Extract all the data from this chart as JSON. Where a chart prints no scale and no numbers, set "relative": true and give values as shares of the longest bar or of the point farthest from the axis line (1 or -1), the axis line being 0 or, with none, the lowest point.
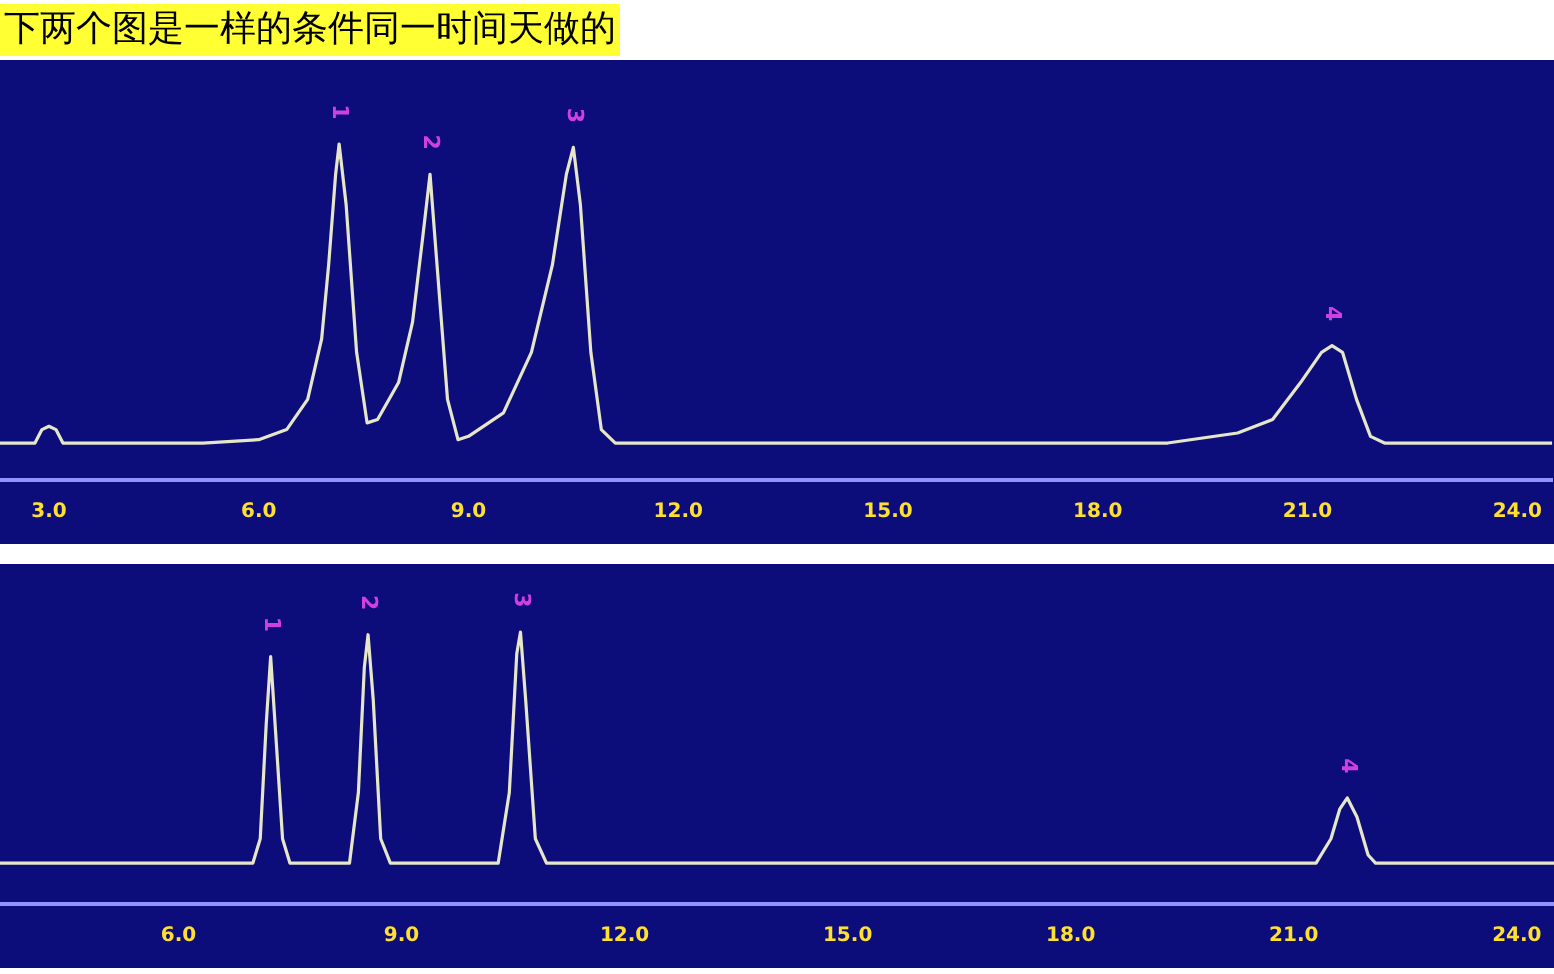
{
  "chart_data": [
    {
      "type": "line",
      "title": "下两个图是一样的条件同一时间天做的",
      "relative": true,
      "color": "#e6e6c8",
      "marker": "none",
      "x": [
        2.3,
        2.8,
        2.9,
        3.0,
        3.1,
        3.2,
        5.2,
        6.0,
        6.4,
        6.7,
        6.9,
        7.0,
        7.1,
        7.15,
        7.25,
        7.4,
        7.55,
        7.7,
        8.0,
        8.2,
        8.35,
        8.45,
        8.55,
        8.7,
        8.85,
        9.0,
        9.5,
        9.9,
        10.2,
        10.4,
        10.5,
        10.6,
        10.75,
        10.9,
        11.1,
        18.2,
        18.6,
        19.0,
        20.0,
        20.5,
        20.9,
        21.2,
        21.35,
        21.5,
        21.7,
        21.9,
        22.1,
        24.5
      ],
      "values": [
        0.11,
        0.11,
        0.15,
        0.16,
        0.15,
        0.11,
        0.11,
        0.12,
        0.15,
        0.24,
        0.42,
        0.64,
        0.91,
        1.0,
        0.82,
        0.38,
        0.17,
        0.18,
        0.29,
        0.47,
        0.73,
        0.91,
        0.64,
        0.24,
        0.12,
        0.13,
        0.2,
        0.38,
        0.64,
        0.91,
        0.99,
        0.82,
        0.38,
        0.15,
        0.11,
        0.11,
        0.11,
        0.11,
        0.14,
        0.18,
        0.29,
        0.38,
        0.4,
        0.38,
        0.24,
        0.13,
        0.11,
        0.11
      ],
      "xlim": [
        2.3,
        24.5
      ],
      "xticks": [
        {
          "value": 3,
          "label": "3.0"
        },
        {
          "value": 6,
          "label": "6.0"
        },
        {
          "value": 9,
          "label": "9.0"
        },
        {
          "value": 12,
          "label": "12.0"
        },
        {
          "value": 15,
          "label": "15.0"
        },
        {
          "value": 18,
          "label": "18.0"
        },
        {
          "value": 21,
          "label": "21.0"
        },
        {
          "value": 24,
          "label": "24.0"
        }
      ],
      "annotations": [
        {
          "text": "1",
          "x": 7.15,
          "y": 1.0
        },
        {
          "text": "2",
          "x": 8.45,
          "y": 0.91
        },
        {
          "text": "3",
          "x": 10.5,
          "y": 0.99
        },
        {
          "text": "4",
          "x": 21.35,
          "y": 0.4
        }
      ]
    },
    {
      "type": "line",
      "relative": true,
      "color": "#e6e6c8",
      "marker": "none",
      "x": [
        3.6,
        7.0,
        7.1,
        7.18,
        7.24,
        7.3,
        7.4,
        7.5,
        8.3,
        8.42,
        8.5,
        8.55,
        8.62,
        8.72,
        8.85,
        10.3,
        10.45,
        10.55,
        10.6,
        10.67,
        10.8,
        10.95,
        21.3,
        21.5,
        21.62,
        21.72,
        21.85,
        22.0,
        22.1,
        24.5
      ],
      "values": [
        0.15,
        0.15,
        0.24,
        0.66,
        0.91,
        0.66,
        0.24,
        0.15,
        0.15,
        0.41,
        0.87,
        0.99,
        0.75,
        0.24,
        0.15,
        0.15,
        0.41,
        0.92,
        1,
        0.75,
        0.24,
        0.15,
        0.15,
        0.24,
        0.35,
        0.39,
        0.32,
        0.18,
        0.15,
        0.15
      ],
      "xlim": [
        3.6,
        24.5
      ],
      "xticks": [
        {
          "value": 6,
          "label": "6.0"
        },
        {
          "value": 9,
          "label": "9.0"
        },
        {
          "value": 12,
          "label": "12.0"
        },
        {
          "value": 15,
          "label": "15.0"
        },
        {
          "value": 18,
          "label": "18.0"
        },
        {
          "value": 21,
          "label": "21.0"
        },
        {
          "value": 24,
          "label": "24.0"
        }
      ],
      "annotations": [
        {
          "text": "1",
          "x": 7.24,
          "y": 0.91
        },
        {
          "text": "2",
          "x": 8.55,
          "y": 0.99
        },
        {
          "text": "3",
          "x": 10.6,
          "y": 1
        },
        {
          "text": "4",
          "x": 21.72,
          "y": 0.39
        }
      ]
    }
  ]
}
